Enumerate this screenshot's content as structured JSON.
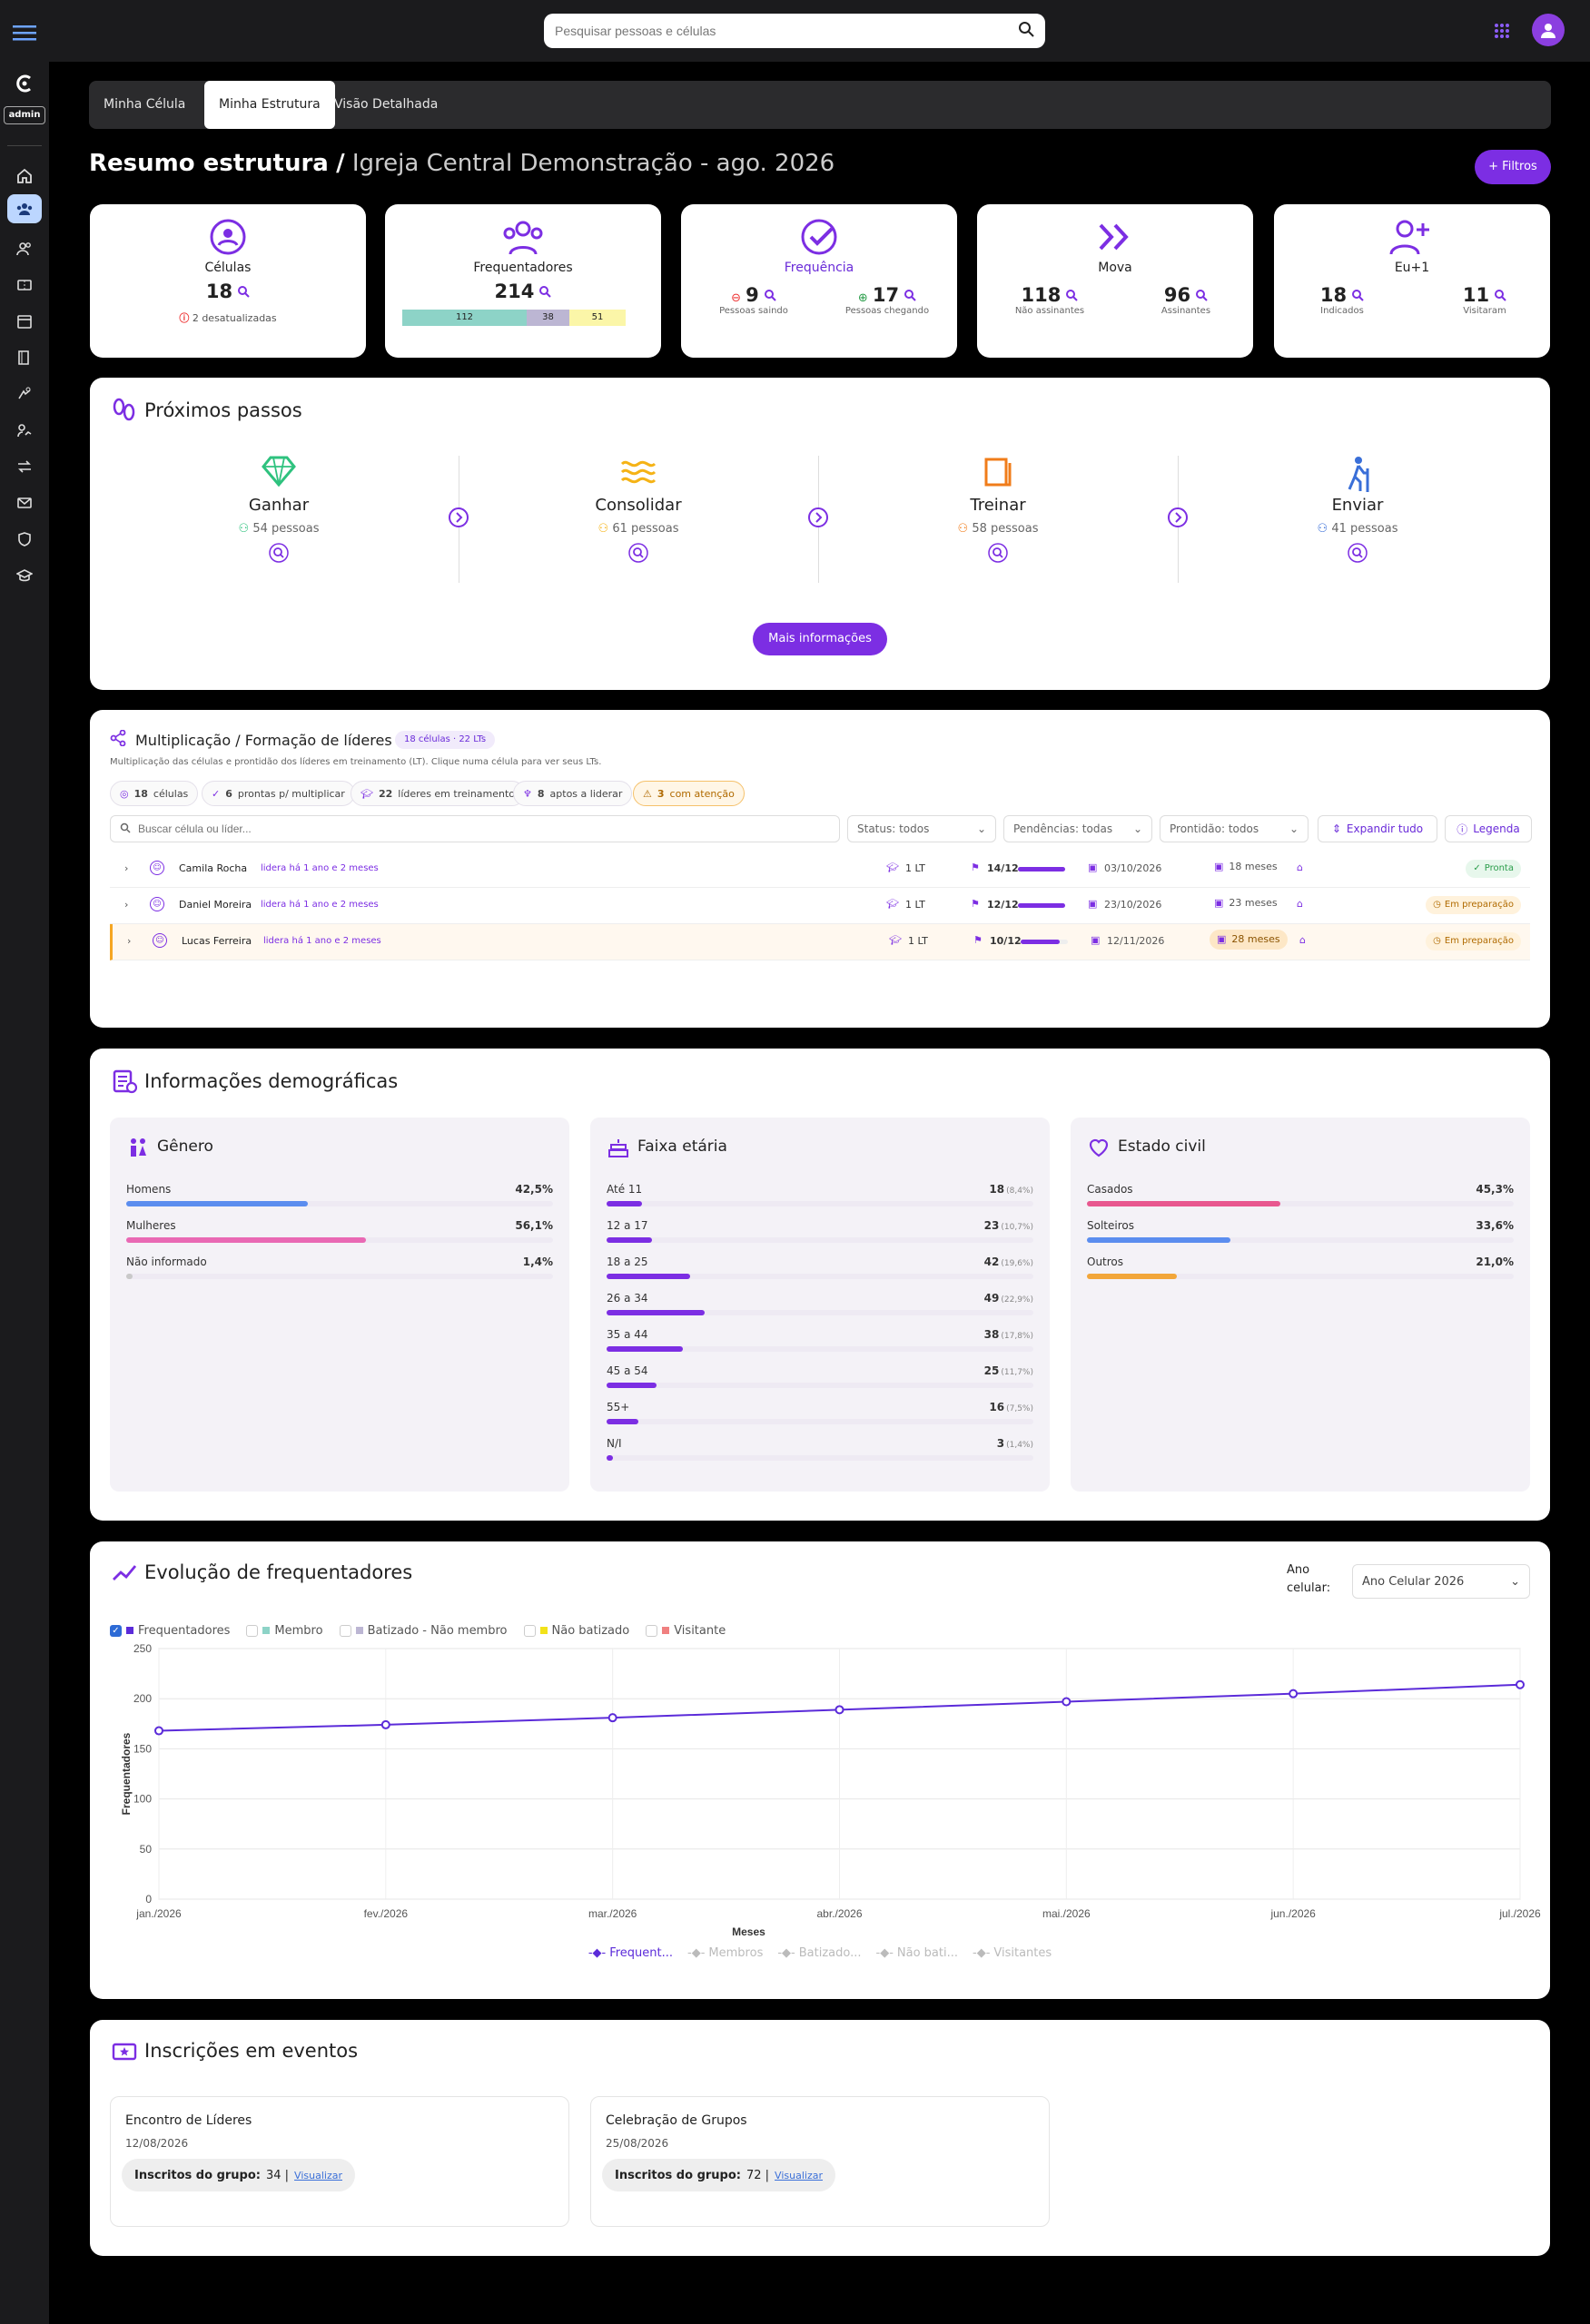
{
  "search": {
    "placeholder": "Pesquisar pessoas e células"
  },
  "sidebar": {
    "admin_label": "admin"
  },
  "tabs": [
    "Minha Célula",
    "Minha Estrutura",
    "Visão Detalhada"
  ],
  "header": {
    "title": "Resumo estrutura",
    "separator": "/",
    "subtitle": "Igreja Central Demonstração - ago. 2026",
    "filters_button": "+ Filtros"
  },
  "stats": {
    "celulas": {
      "label": "Células",
      "value": "18",
      "warning": "2 desatualizadas"
    },
    "frequentadores": {
      "label": "Frequentadores",
      "value": "214",
      "segments": [
        {
          "value": "112",
          "color": "#8dd3c7"
        },
        {
          "value": "38",
          "color": "#bcb6d3"
        },
        {
          "value": "51",
          "color": "#fbf6a8"
        }
      ]
    },
    "frequencia": {
      "label": "Frequência",
      "left_value": "9",
      "left_label": "Pessoas saindo",
      "right_value": "17",
      "right_label": "Pessoas chegando"
    },
    "mova": {
      "label": "Mova",
      "left_value": "118",
      "left_label": "Não assinantes",
      "right_value": "96",
      "right_label": "Assinantes"
    },
    "eu1": {
      "label": "Eu+1",
      "left_value": "18",
      "left_label": "Indicados",
      "right_value": "11",
      "right_label": "Visitaram"
    }
  },
  "next_steps": {
    "title": "Próximos passos",
    "more_button": "Mais informações",
    "steps": [
      {
        "name": "Ganhar",
        "count": "54 pessoas",
        "color": "#2ec27e"
      },
      {
        "name": "Consolidar",
        "count": "61 pessoas",
        "color": "#f5b316"
      },
      {
        "name": "Treinar",
        "count": "58 pessoas",
        "color": "#f07c1a"
      },
      {
        "name": "Enviar",
        "count": "41 pessoas",
        "color": "#3a6fd8"
      }
    ]
  },
  "multiplication": {
    "title": "Multiplicação / Formação de líderes",
    "badge": "18 células · 22 LTs",
    "description": "Multiplicação das células e prontidão dos líderes em treinamento (LT). Clique numa célula para ver seus LTs.",
    "chips": [
      {
        "num": "18",
        "text": "células"
      },
      {
        "num": "6",
        "text": "prontas p/ multiplicar"
      },
      {
        "num": "22",
        "text": "líderes em treinamento"
      },
      {
        "num": "8",
        "text": "aptos a liderar"
      },
      {
        "num": "3",
        "text": "com atenção"
      }
    ],
    "search_placeholder": "Buscar célula ou líder...",
    "filters": [
      "Status: todos",
      "Pendências: todas",
      "Prontidão: todos"
    ],
    "expand_button": "Expandir tudo",
    "legend_button": "Legenda",
    "rows": [
      {
        "name": "Camila Rocha",
        "since": "lidera há 1 ano e 2 meses",
        "lt": "1 LT",
        "progress": "14/12",
        "progress_frac": 1.0,
        "date": "03/10/2026",
        "months": "18 meses",
        "status": "Pronta"
      },
      {
        "name": "Daniel Moreira",
        "since": "lidera há 1 ano e 2 meses",
        "lt": "1 LT",
        "progress": "12/12",
        "progress_frac": 1.0,
        "date": "23/10/2026",
        "months": "23 meses",
        "status": "Em preparação"
      },
      {
        "name": "Lucas Ferreira",
        "since": "lidera há 1 ano e 2 meses",
        "lt": "1 LT",
        "progress": "10/12",
        "progress_frac": 0.83,
        "date": "12/11/2026",
        "months": "28 meses",
        "status": "Em preparação"
      }
    ]
  },
  "demographics": {
    "title": "Informações demográficas",
    "genero": {
      "title": "Gênero",
      "items": [
        {
          "label": "Homens",
          "value": "42,5%",
          "frac": 0.425,
          "color": "#5b8def"
        },
        {
          "label": "Mulheres",
          "value": "56,1%",
          "frac": 0.561,
          "color": "#e969b4"
        },
        {
          "label": "Não informado",
          "value": "1,4%",
          "frac": 0.014,
          "color": "#c9c9c9"
        }
      ]
    },
    "faixa": {
      "title": "Faixa etária",
      "items": [
        {
          "label": "Até 11",
          "value": "18",
          "pct": "(8,4%)",
          "frac": 0.084
        },
        {
          "label": "12 a 17",
          "value": "23",
          "pct": "(10,7%)",
          "frac": 0.107
        },
        {
          "label": "18 a 25",
          "value": "42",
          "pct": "(19,6%)",
          "frac": 0.196
        },
        {
          "label": "26 a 34",
          "value": "49",
          "pct": "(22,9%)",
          "frac": 0.229
        },
        {
          "label": "35 a 44",
          "value": "38",
          "pct": "(17,8%)",
          "frac": 0.178
        },
        {
          "label": "45 a 54",
          "value": "25",
          "pct": "(11,7%)",
          "frac": 0.117
        },
        {
          "label": "55+",
          "value": "16",
          "pct": "(7,5%)",
          "frac": 0.075
        },
        {
          "label": "N/I",
          "value": "3",
          "pct": "(1,4%)",
          "frac": 0.014
        }
      ]
    },
    "civil": {
      "title": "Estado civil",
      "items": [
        {
          "label": "Casados",
          "value": "45,3%",
          "frac": 0.453,
          "color": "#e8578f"
        },
        {
          "label": "Solteiros",
          "value": "33,6%",
          "frac": 0.336,
          "color": "#5b8def"
        },
        {
          "label": "Outros",
          "value": "21,0%",
          "frac": 0.21,
          "color": "#f2a63a"
        }
      ]
    }
  },
  "evolution": {
    "title": "Evolução de frequentadores",
    "year_label": "Ano celular:",
    "year_value": "Ano Celular 2026",
    "filters": [
      {
        "label": "Frequentadores",
        "color": "#5b2bd9",
        "checked": true
      },
      {
        "label": "Membro",
        "color": "#8dd3c7",
        "checked": false
      },
      {
        "label": "Batizado - Não membro",
        "color": "#bcb6d3",
        "checked": false
      },
      {
        "label": "Não batizado",
        "color": "#f2e21a",
        "checked": false
      },
      {
        "label": "Visitante",
        "color": "#f08080",
        "checked": false
      }
    ],
    "bottom_legend": [
      "Frequent...",
      "Membros",
      "Batizado...",
      "Não bati...",
      "Visitantes"
    ]
  },
  "chart_data": {
    "type": "line",
    "xlabel": "Meses",
    "ylabel": "Frequentadores",
    "ylim": [
      0,
      250
    ],
    "yticks": [
      0,
      50,
      100,
      150,
      200,
      250
    ],
    "categories": [
      "jan./2026",
      "fev./2026",
      "mar./2026",
      "abr./2026",
      "mai./2026",
      "jun./2026",
      "jul./2026"
    ],
    "series": [
      {
        "name": "Frequentadores",
        "values": [
          168,
          174,
          181,
          189,
          197,
          205,
          214
        ],
        "color": "#5b2bd9"
      }
    ],
    "grid": true
  },
  "events": {
    "title": "Inscrições em eventos",
    "items": [
      {
        "name": "Encontro de Líderes",
        "date": "12/08/2026",
        "label": "Inscritos do grupo:",
        "count": "34 |",
        "link": "Visualizar"
      },
      {
        "name": "Celebração de Grupos",
        "date": "25/08/2026",
        "label": "Inscritos do grupo:",
        "count": "72 |",
        "link": "Visualizar"
      }
    ]
  }
}
